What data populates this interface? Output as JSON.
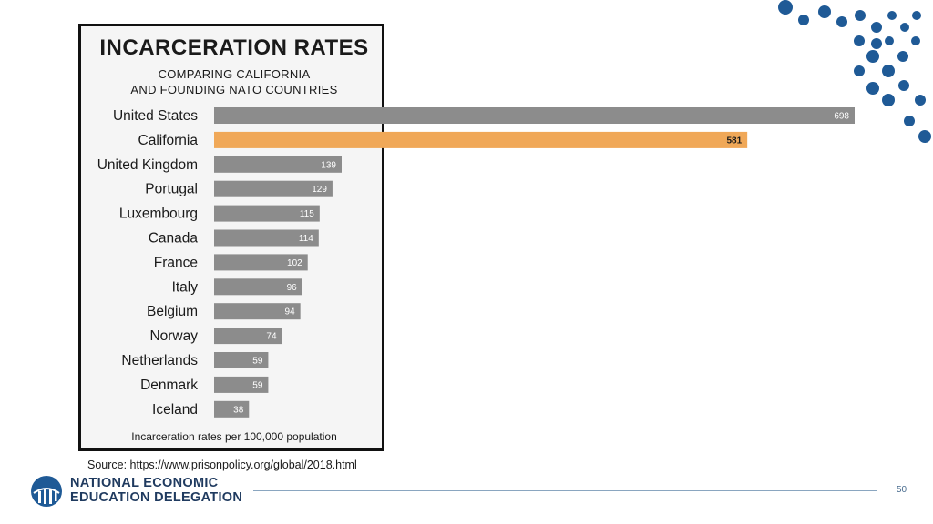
{
  "chart_data": {
    "type": "bar",
    "orientation": "horizontal",
    "title": "INCARCERATION RATES",
    "subtitle": [
      "COMPARING CALIFORNIA",
      "AND FOUNDING NATO COUNTRIES"
    ],
    "caption": "Incarceration rates per 100,000 population",
    "categories": [
      "United States",
      "California",
      "United Kingdom",
      "Portugal",
      "Luxembourg",
      "Canada",
      "France",
      "Italy",
      "Belgium",
      "Norway",
      "Netherlands",
      "Denmark",
      "Iceland"
    ],
    "values": [
      698,
      581,
      139,
      129,
      115,
      114,
      102,
      96,
      94,
      74,
      59,
      59,
      38
    ],
    "highlight": "California",
    "xlim": [
      0,
      698
    ],
    "bar_color": "#8c8c8c",
    "highlight_color": "#f0a858",
    "grid": false
  },
  "source": "Source: https://www.prisonpolicy.org/global/2018.html",
  "logo": {
    "line1": "NATIONAL ECONOMIC",
    "line2": "EDUCATION DELEGATION",
    "color": "#1f3a5f"
  },
  "page_number": "50",
  "accent_color": "#1f5a96"
}
